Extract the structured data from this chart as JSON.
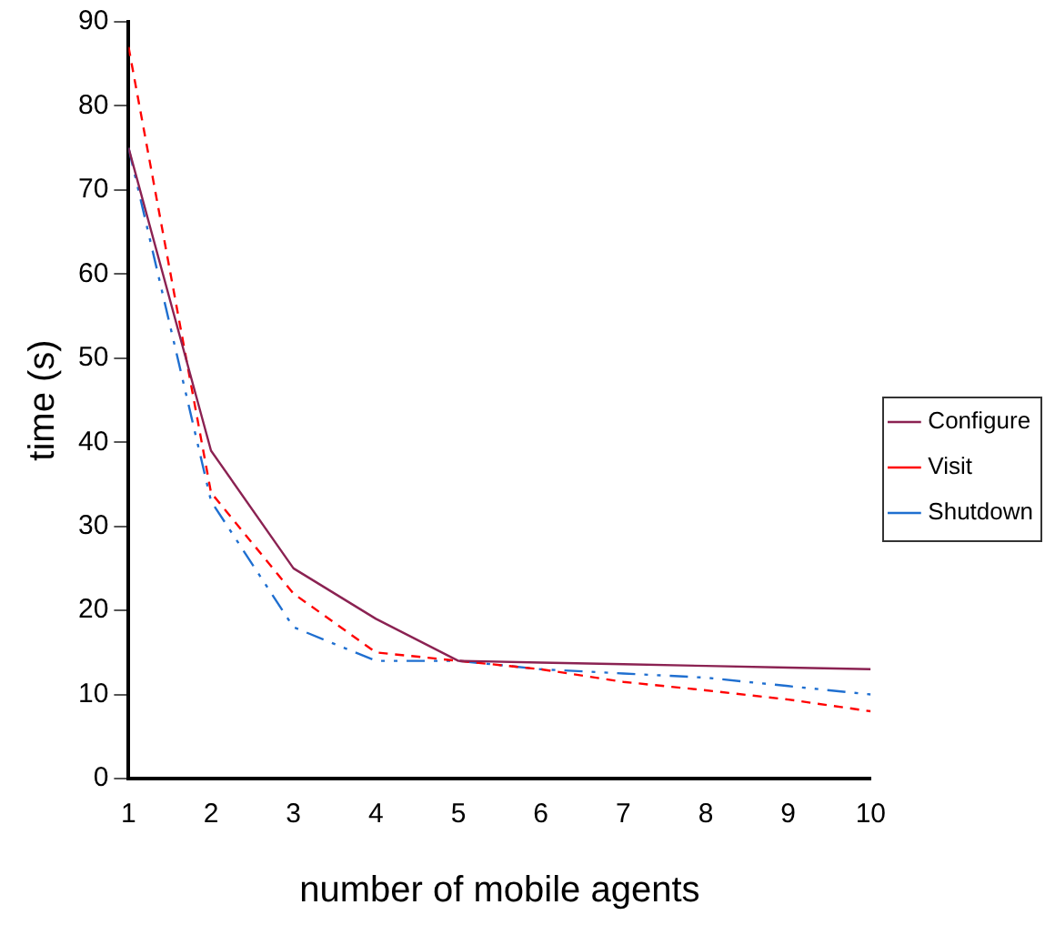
{
  "chart_data": {
    "type": "line",
    "xlabel": "number of mobile agents",
    "ylabel": "time (s)",
    "x": [
      1,
      2,
      3,
      4,
      5,
      6,
      7,
      8,
      9,
      10
    ],
    "series": [
      {
        "name": "Configure",
        "color": "#8b2252",
        "line_style": "solid",
        "values": [
          75,
          39,
          25,
          19,
          14,
          13.8,
          13.6,
          13.4,
          13.2,
          13
        ]
      },
      {
        "name": "Visit",
        "color": "#ff0000",
        "line_style": "dashed",
        "values": [
          87,
          34,
          22,
          15,
          14,
          13,
          11.5,
          10.5,
          9.4,
          8
        ]
      },
      {
        "name": "Shutdown",
        "color": "#1f6fd0",
        "line_style": "dotted",
        "values": [
          75,
          33,
          18,
          14,
          14,
          13,
          12.5,
          12,
          11,
          10
        ]
      }
    ],
    "xlim": [
      1,
      10
    ],
    "xticks": [
      1,
      2,
      3,
      4,
      5,
      6,
      7,
      8,
      9,
      10
    ],
    "ylim": [
      0,
      90
    ],
    "yticks": [
      0,
      10,
      20,
      30,
      40,
      50,
      60,
      70,
      80,
      90
    ],
    "grid": false,
    "legend": "right",
    "marker": "none"
  }
}
